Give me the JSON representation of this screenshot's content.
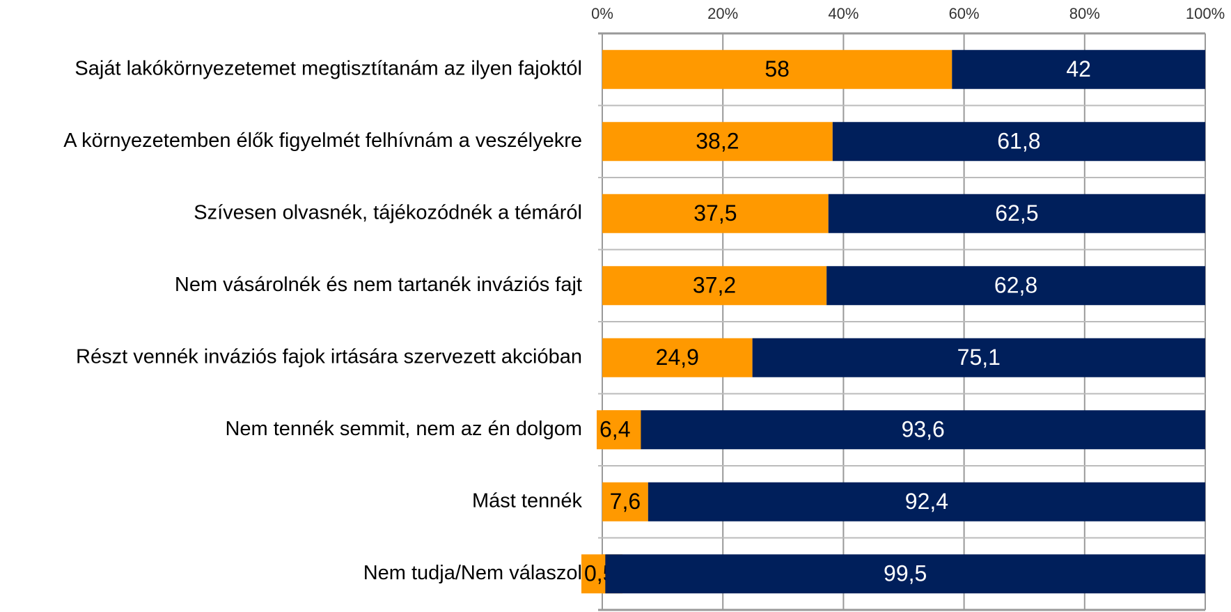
{
  "chart_data": {
    "type": "stacked_bar_horizontal",
    "categories": [
      "Saját lakókörnyezetemet megtisztítanám az ilyen fajoktól",
      "A környezetemben élők figyelmét felhívnám a veszélyekre",
      "Szívesen olvasnék, tájékozódnék a témáról",
      "Nem vásárolnék és nem tartanék inváziós fajt",
      "Részt vennék inváziós fajok irtására szervezett akcióban",
      "Nem tennék semmit, nem az én dolgom",
      "Mást tennék",
      "Nem tudja/Nem válaszol"
    ],
    "series": [
      {
        "color": "#ff9900",
        "label_color": "#000000",
        "values": [
          58,
          38.2,
          37.5,
          37.2,
          24.9,
          6.4,
          7.6,
          0.5
        ],
        "value_labels": [
          "58",
          "38,2",
          "37,5",
          "37,2",
          "24,9",
          "6,4",
          "7,6",
          "0,5"
        ]
      },
      {
        "color": "#001f5b",
        "label_color": "#ffffff",
        "values": [
          42,
          61.8,
          62.5,
          62.8,
          75.1,
          93.6,
          92.4,
          99.5
        ],
        "value_labels": [
          "42",
          "61,8",
          "62,5",
          "62,8",
          "75,1",
          "93,6",
          "92,4",
          "99,5"
        ]
      }
    ],
    "xlim": [
      0,
      100
    ],
    "xticks": [
      {
        "value": 0,
        "label": "0%"
      },
      {
        "value": 20,
        "label": "20%"
      },
      {
        "value": 40,
        "label": "40%"
      },
      {
        "value": 60,
        "label": "60%"
      },
      {
        "value": 80,
        "label": "80%"
      },
      {
        "value": 100,
        "label": "100%"
      }
    ],
    "grid": true
  }
}
